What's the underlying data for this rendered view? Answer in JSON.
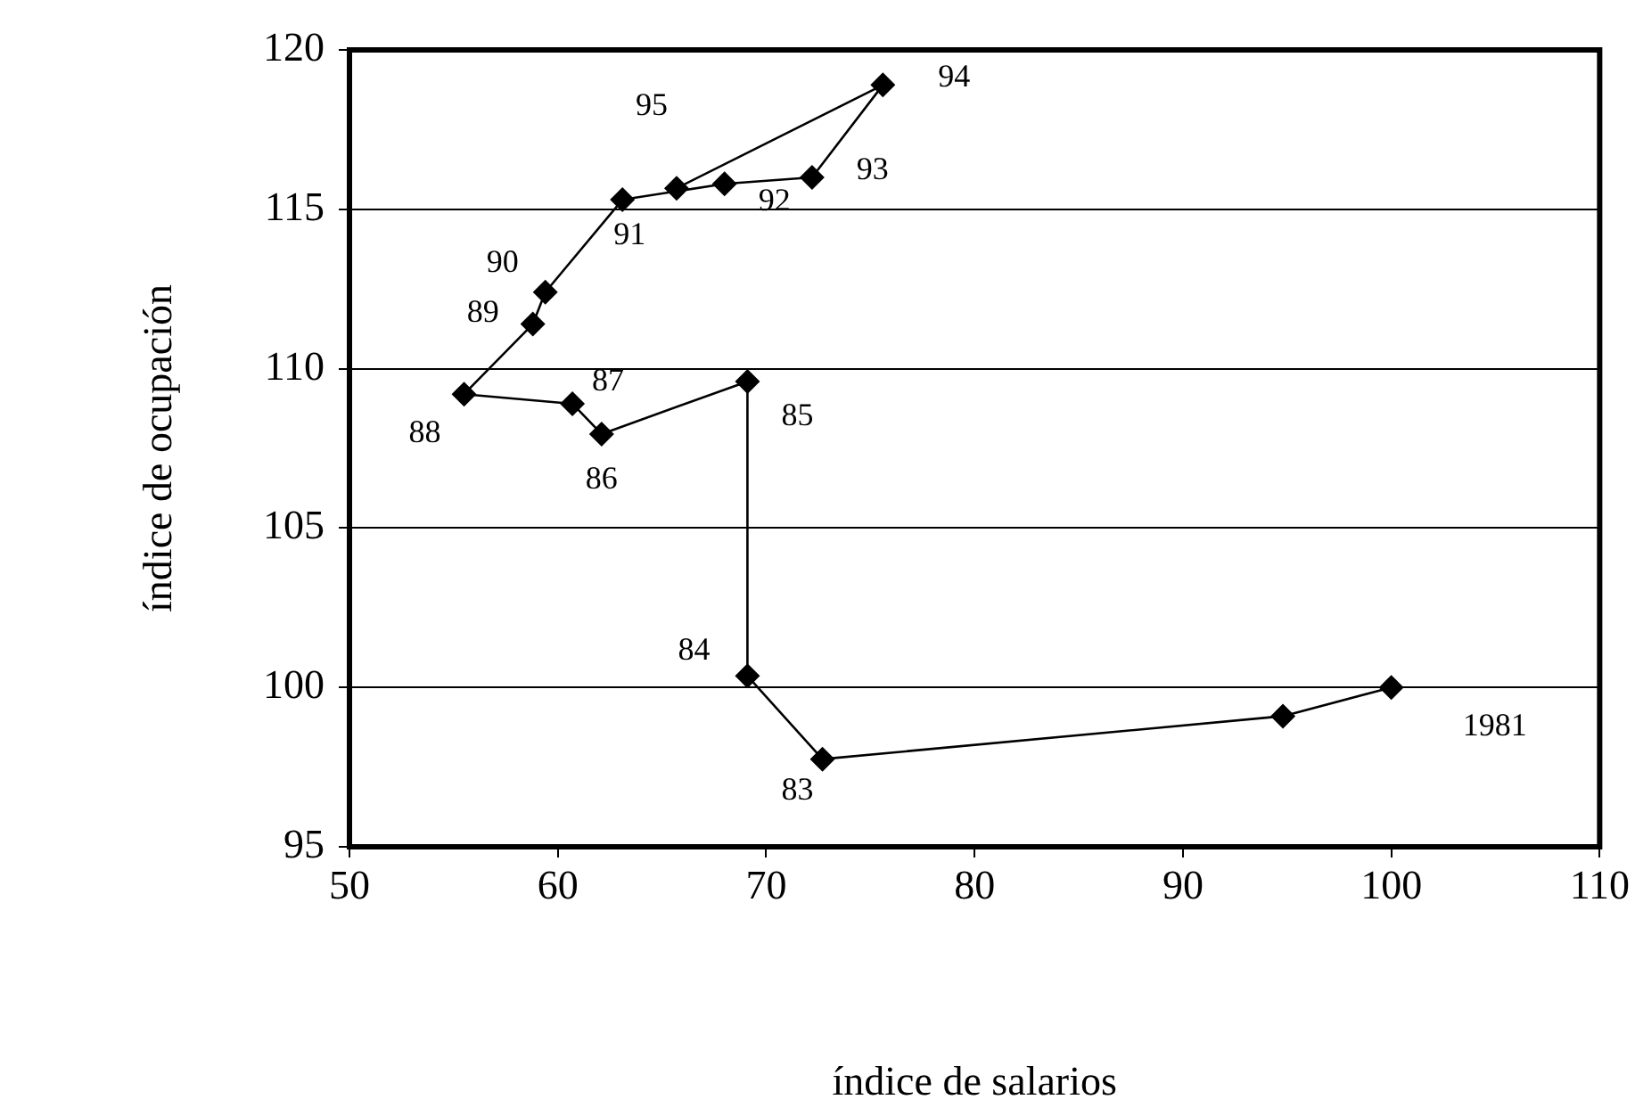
{
  "chart_data": {
    "type": "line",
    "xlabel": "índice de salarios",
    "ylabel": "índice de ocupación",
    "series": [
      {
        "color": "#000000",
        "x": [
          100,
          94.8,
          72.7,
          69.1,
          69.1,
          62.1,
          60.7,
          55.5,
          58.8,
          59.4,
          63.1,
          68.0,
          72.2,
          75.6,
          65.7
        ],
        "values": [
          100,
          99.1,
          97.75,
          100.36,
          109.6,
          107.95,
          108.9,
          109.2,
          111.4,
          112.4,
          115.3,
          115.8,
          116.0,
          118.9,
          115.66
        ]
      }
    ],
    "xlim": [
      50,
      110
    ],
    "xticks": [
      50,
      60,
      70,
      80,
      90,
      100,
      110
    ],
    "ylim": [
      95,
      120
    ],
    "yticks": [
      95,
      100,
      105,
      110,
      115,
      120
    ],
    "grid": "y",
    "legend": false,
    "marker": "diamond",
    "line_style": "solid",
    "annotations": [
      {
        "text": "1981",
        "x": 100,
        "y": 100
      },
      {
        "text": "83",
        "x": 72.7,
        "y": 97.75
      },
      {
        "text": "84",
        "x": 69.1,
        "y": 100.36
      },
      {
        "text": "85",
        "x": 69.1,
        "y": 109.6
      },
      {
        "text": "86",
        "x": 62.1,
        "y": 107.95
      },
      {
        "text": "87",
        "x": 60.7,
        "y": 108.9
      },
      {
        "text": "88",
        "x": 55.5,
        "y": 109.2
      },
      {
        "text": "89",
        "x": 58.8,
        "y": 111.4
      },
      {
        "text": "90",
        "x": 59.4,
        "y": 112.4
      },
      {
        "text": "91",
        "x": 63.1,
        "y": 115.3
      },
      {
        "text": "92",
        "x": 68.0,
        "y": 115.8
      },
      {
        "text": "93",
        "x": 72.2,
        "y": 116.0
      },
      {
        "text": "94",
        "x": 75.6,
        "y": 118.9
      },
      {
        "text": "95",
        "x": 65.7,
        "y": 115.66
      }
    ]
  }
}
